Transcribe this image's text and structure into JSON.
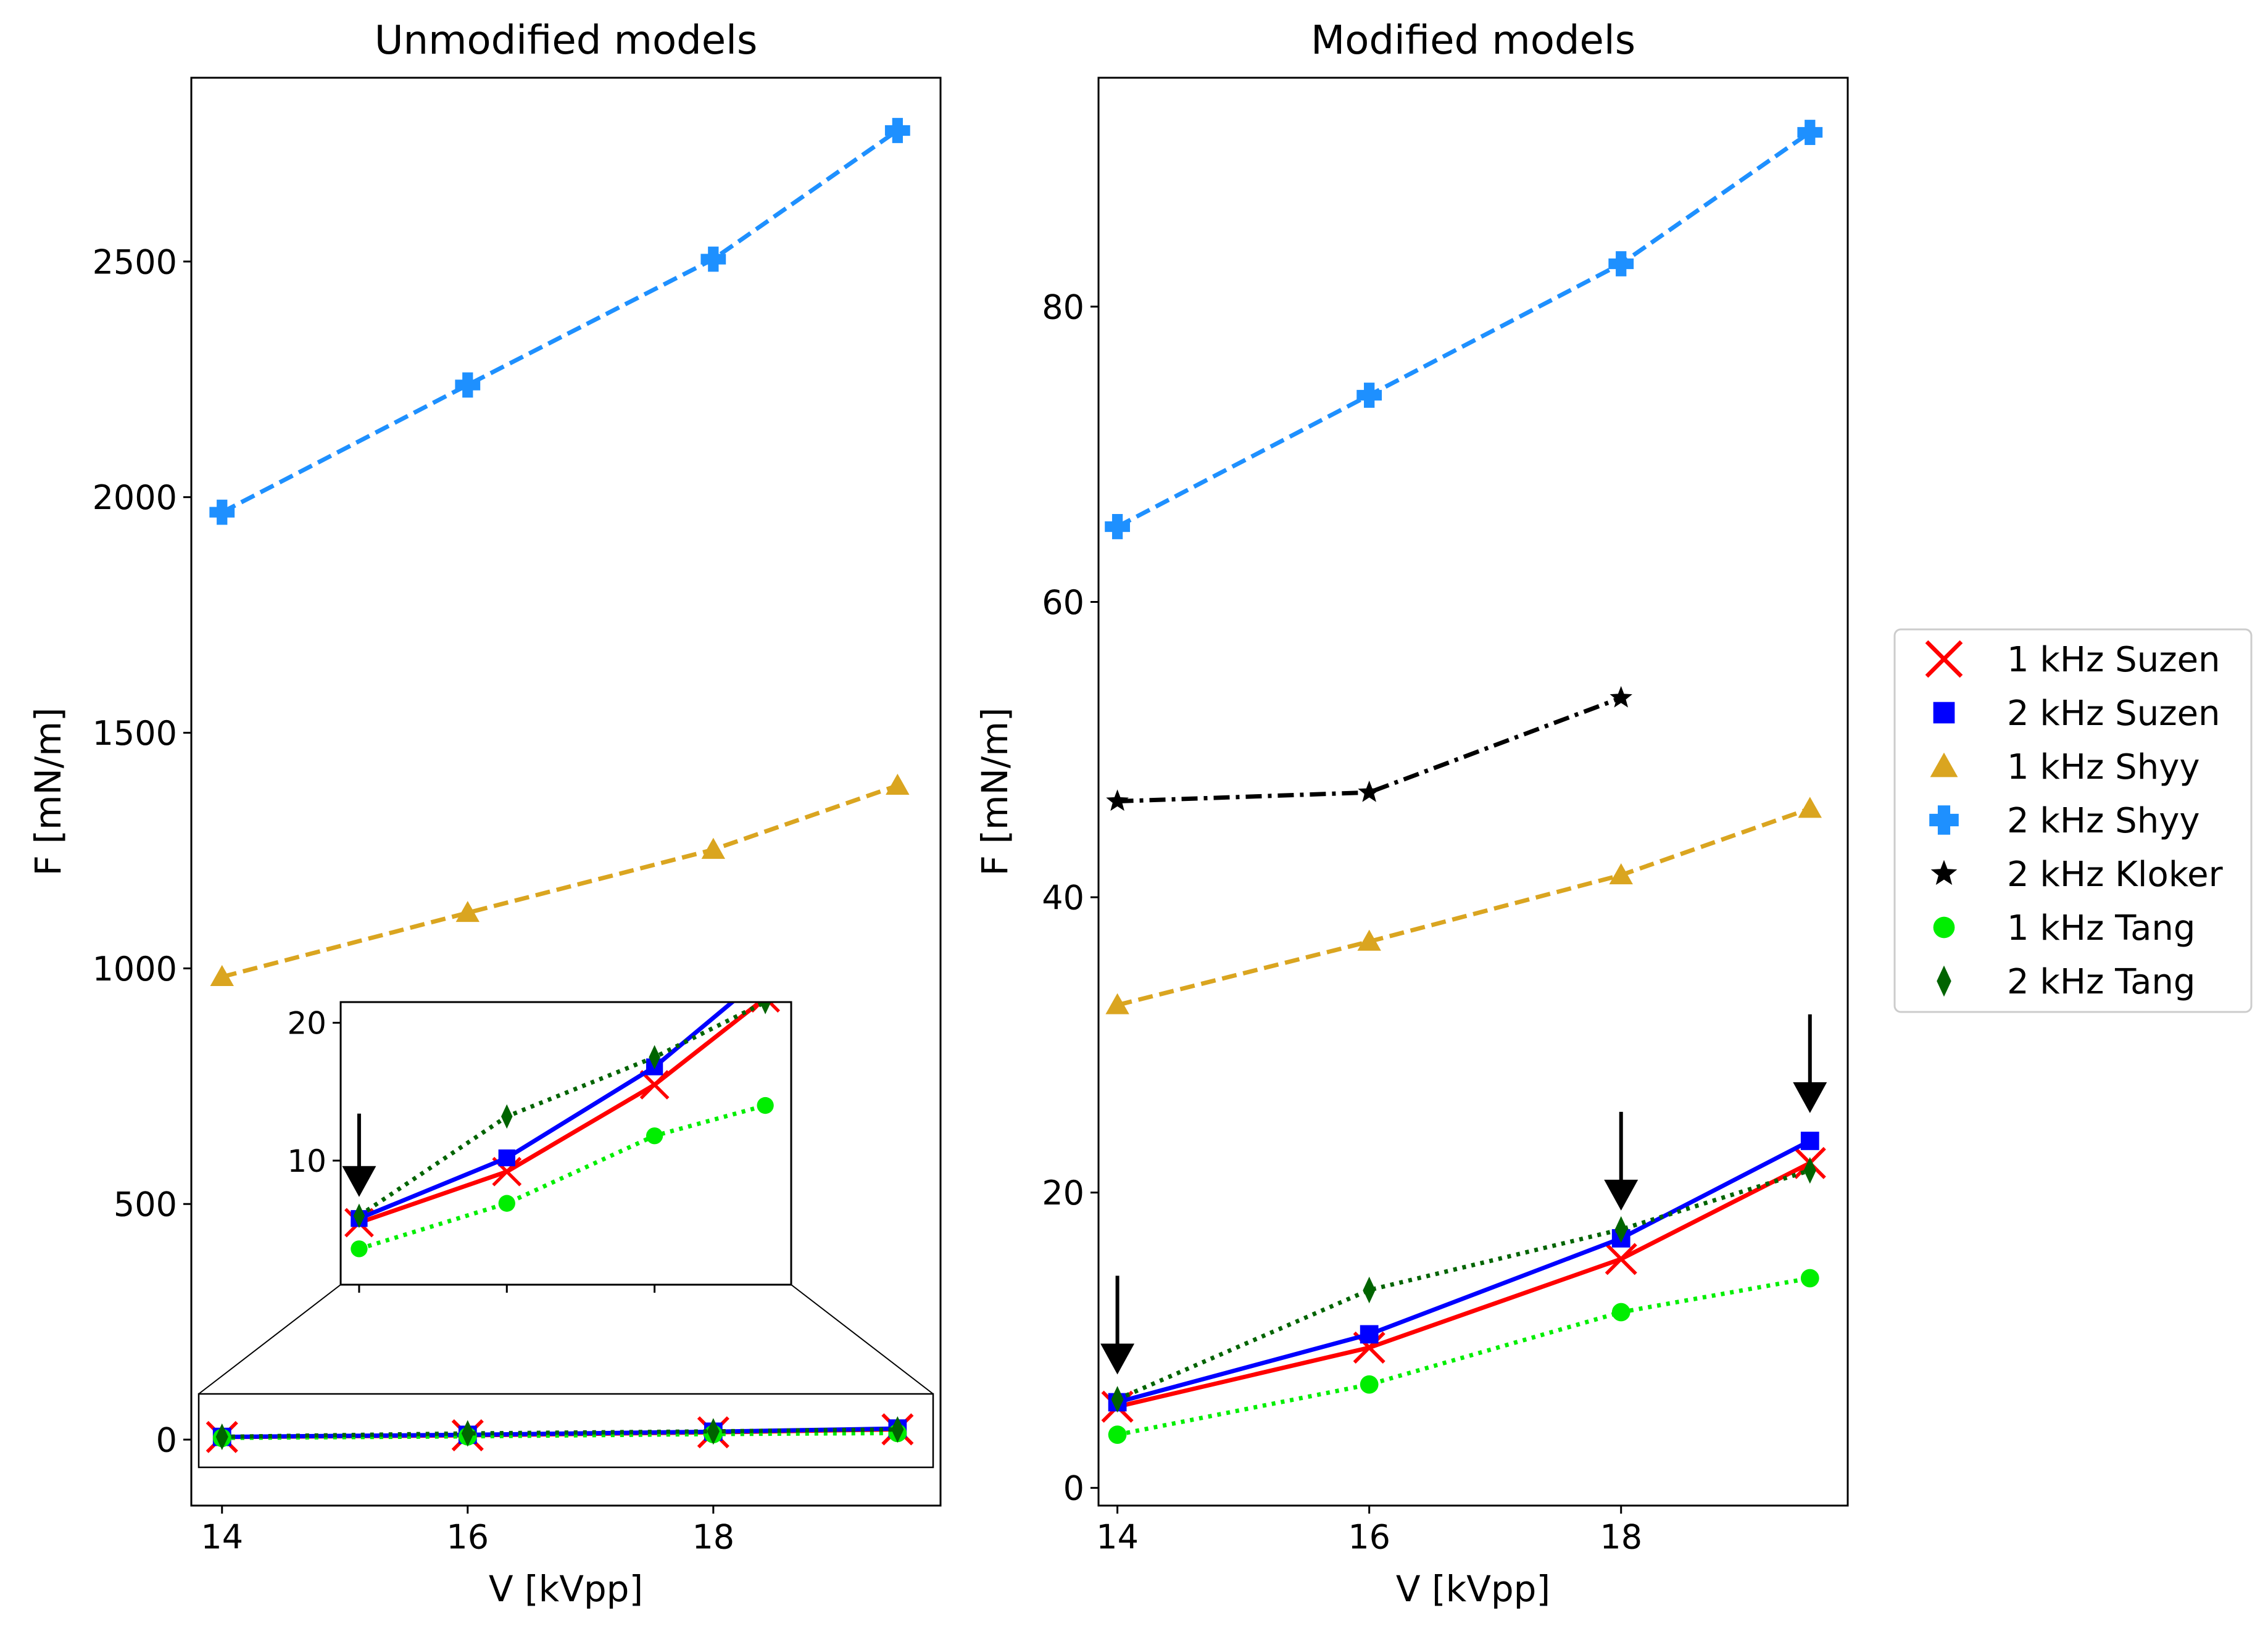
{
  "chart_data": [
    {
      "type": "line",
      "title": "Unmodified models",
      "xlabel": "V [kVpp]",
      "ylabel": "F [mN/m]",
      "xlim": [
        13.75,
        19.85
      ],
      "ylim": [
        -140,
        2890
      ],
      "xticks": [
        14,
        16,
        18
      ],
      "yticks": [
        0,
        500,
        1000,
        1500,
        2000,
        2500
      ],
      "grid": false,
      "series": [
        {
          "key": "suzen1",
          "x": [
            14,
            16,
            18,
            19.5
          ],
          "y": [
            5.5,
            9.2,
            15.5,
            21.8
          ]
        },
        {
          "key": "suzen2",
          "x": [
            14,
            16,
            18,
            19.5
          ],
          "y": [
            5.8,
            10.2,
            16.8,
            23.5
          ]
        },
        {
          "key": "shyy1",
          "x": [
            14,
            16,
            18,
            19.5
          ],
          "y": [
            982,
            1118,
            1252,
            1388
          ]
        },
        {
          "key": "shyy2",
          "x": [
            14,
            16,
            18,
            19.5
          ],
          "y": [
            1968,
            2238,
            2505,
            2778
          ]
        },
        {
          "key": "tang1",
          "x": [
            14,
            16,
            18,
            19.5
          ],
          "y": [
            3.6,
            6.9,
            11.8,
            14.0
          ]
        },
        {
          "key": "tang2",
          "x": [
            14,
            16,
            18,
            19.5
          ],
          "y": [
            6.0,
            13.2,
            17.5,
            21.5
          ]
        }
      ],
      "inset": {
        "xlim": [
          13.75,
          19.85
        ],
        "ylim": [
          1,
          21.5
        ],
        "yticks": [
          10,
          20
        ],
        "xticks": [
          14,
          16,
          18
        ],
        "zoom_region": {
          "xlim": [
            13.75,
            19.85
          ],
          "ylim": [
            -62,
            62
          ]
        }
      }
    },
    {
      "type": "line",
      "title": "Modified models",
      "xlabel": "V [kVpp]",
      "ylabel": "F [mN/m]",
      "xlim": [
        13.85,
        19.8
      ],
      "ylim": [
        -1.2,
        95.5
      ],
      "xticks": [
        14,
        16,
        18
      ],
      "yticks": [
        0,
        20,
        40,
        60,
        80
      ],
      "grid": false,
      "series": [
        {
          "key": "suzen1",
          "x": [
            14,
            16,
            18,
            19.5
          ],
          "y": [
            5.5,
            9.5,
            15.5,
            22.0
          ]
        },
        {
          "key": "suzen2",
          "x": [
            14,
            16,
            18,
            19.5
          ],
          "y": [
            5.8,
            10.4,
            16.9,
            23.5
          ]
        },
        {
          "key": "shyy1",
          "x": [
            14,
            16,
            18,
            19.5
          ],
          "y": [
            32.7,
            37.0,
            41.5,
            46.0
          ]
        },
        {
          "key": "shyy2",
          "x": [
            14,
            16,
            18,
            19.5
          ],
          "y": [
            65.1,
            74.0,
            82.9,
            91.8
          ]
        },
        {
          "key": "kloker2",
          "x": [
            14,
            16,
            18
          ],
          "y": [
            46.5,
            47.1,
            53.5
          ]
        },
        {
          "key": "tang1",
          "x": [
            14,
            16,
            18,
            19.5
          ],
          "y": [
            3.6,
            7.0,
            11.9,
            14.2
          ]
        },
        {
          "key": "tang2",
          "x": [
            14,
            16,
            18,
            19.5
          ],
          "y": [
            6.0,
            13.4,
            17.5,
            21.5
          ]
        }
      ],
      "arrows_at": [
        {
          "x": 14,
          "y": 5.8
        },
        {
          "x": 18,
          "y": 16.9
        },
        {
          "x": 19.5,
          "y": 23.5
        }
      ]
    }
  ],
  "legend": {
    "placement": "right",
    "entries": [
      {
        "key": "suzen1",
        "label": "1 kHz Suzen",
        "color": "#ff0000",
        "marker": "x",
        "line": "solid"
      },
      {
        "key": "suzen2",
        "label": "2 kHz Suzen",
        "color": "#0000ff",
        "marker": "square",
        "line": "solid"
      },
      {
        "key": "shyy1",
        "label": "1 kHz Shyy",
        "color": "#daa520",
        "marker": "triangle",
        "line": "dashed"
      },
      {
        "key": "shyy2",
        "label": "2 kHz Shyy",
        "color": "#1e90ff",
        "marker": "plus",
        "line": "dashed"
      },
      {
        "key": "kloker2",
        "label": "2 kHz Kloker",
        "color": "#000000",
        "marker": "star",
        "line": "dashdot"
      },
      {
        "key": "tang1",
        "label": "1 kHz Tang",
        "color": "#00ee00",
        "marker": "circle",
        "line": "dotted"
      },
      {
        "key": "tang2",
        "label": "2 kHz Tang",
        "color": "#006400",
        "marker": "diamond",
        "line": "dotted"
      }
    ]
  }
}
